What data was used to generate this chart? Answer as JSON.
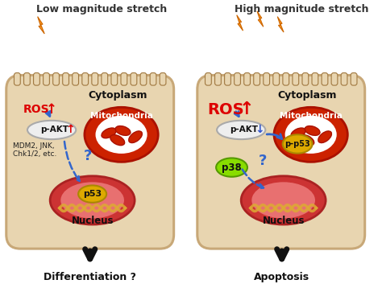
{
  "bg_color": "#ffffff",
  "cell_fill": "#e8d5b0",
  "cell_edge": "#c8a878",
  "mito_outer": "#cc2200",
  "mito_inner": "#ffffff",
  "nucleus_outer": "#cc3333",
  "nucleus_inner": "#e87070",
  "p53_color": "#ddaa00",
  "p38_color": "#88dd00",
  "pakt_color": "#e8e8e8",
  "arrow_blue": "#3366cc",
  "arrow_black": "#111111",
  "ros_color": "#dd0000",
  "lightning_color": "#ff9922",
  "lightning_edge": "#cc6600",
  "left_label": "Low magnitude stretch",
  "right_label": "High magnitude stretch",
  "cytoplasm_label": "Cytoplasm",
  "mito_label": "Mitochondria",
  "nucleus_label": "Nucleus",
  "diff_label": "Differentiation ?",
  "apop_label": "Apoptosis",
  "ros_text": "ROS",
  "pakt_text": "p-AKT",
  "p53_text": "p53",
  "pp53_text": "p-p53",
  "p38_text": "p38",
  "mdm2_text": "MDM2, JNK,\nChk1/2, etc.",
  "question": "?",
  "up_arrow": "↑",
  "down_arrow": "↓",
  "dna_color": "#ddaa33",
  "cilia_edge": "#a07840"
}
